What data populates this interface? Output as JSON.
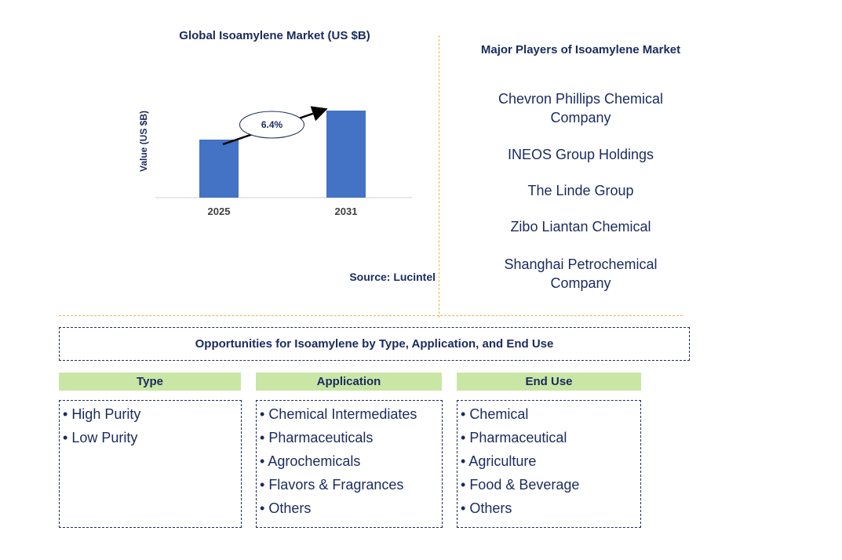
{
  "chart_data": {
    "type": "bar",
    "title": "Global Isoamylene Market (US $B)",
    "ylabel": "Value (US $B)",
    "xlabel": "",
    "categories": [
      "2025",
      "2031"
    ],
    "values": [
      1.0,
      1.5
    ],
    "ylim": [
      0,
      1.5
    ],
    "annotation": "6.4%",
    "bar_color": "#4472c4"
  },
  "source": "Source: Lucintel",
  "players": {
    "title": "Major Players of Isoamylene Market",
    "items": [
      "Chevron Phillips Chemical Company",
      "INEOS Group Holdings",
      "The Linde Group",
      "Zibo Liantan Chemical",
      "Shanghai Petrochemical Company"
    ]
  },
  "opportunities": {
    "title": "Opportunities for Isoamylene by Type, Application, and End Use",
    "columns": [
      {
        "header": "Type",
        "items": [
          "High Purity",
          "Low Purity"
        ]
      },
      {
        "header": "Application",
        "items": [
          "Chemical Intermediates",
          "Pharmaceuticals",
          "Agrochemicals",
          "Flavors & Fragrances",
          "Others"
        ]
      },
      {
        "header": "End Use",
        "items": [
          "Chemical",
          "Pharmaceutical",
          "Agriculture",
          "Food & Beverage",
          "Others"
        ]
      }
    ]
  },
  "colors": {
    "accent": "#1a2b5e",
    "header_bg": "#c9e6a5",
    "divider": "#e3b84a"
  }
}
